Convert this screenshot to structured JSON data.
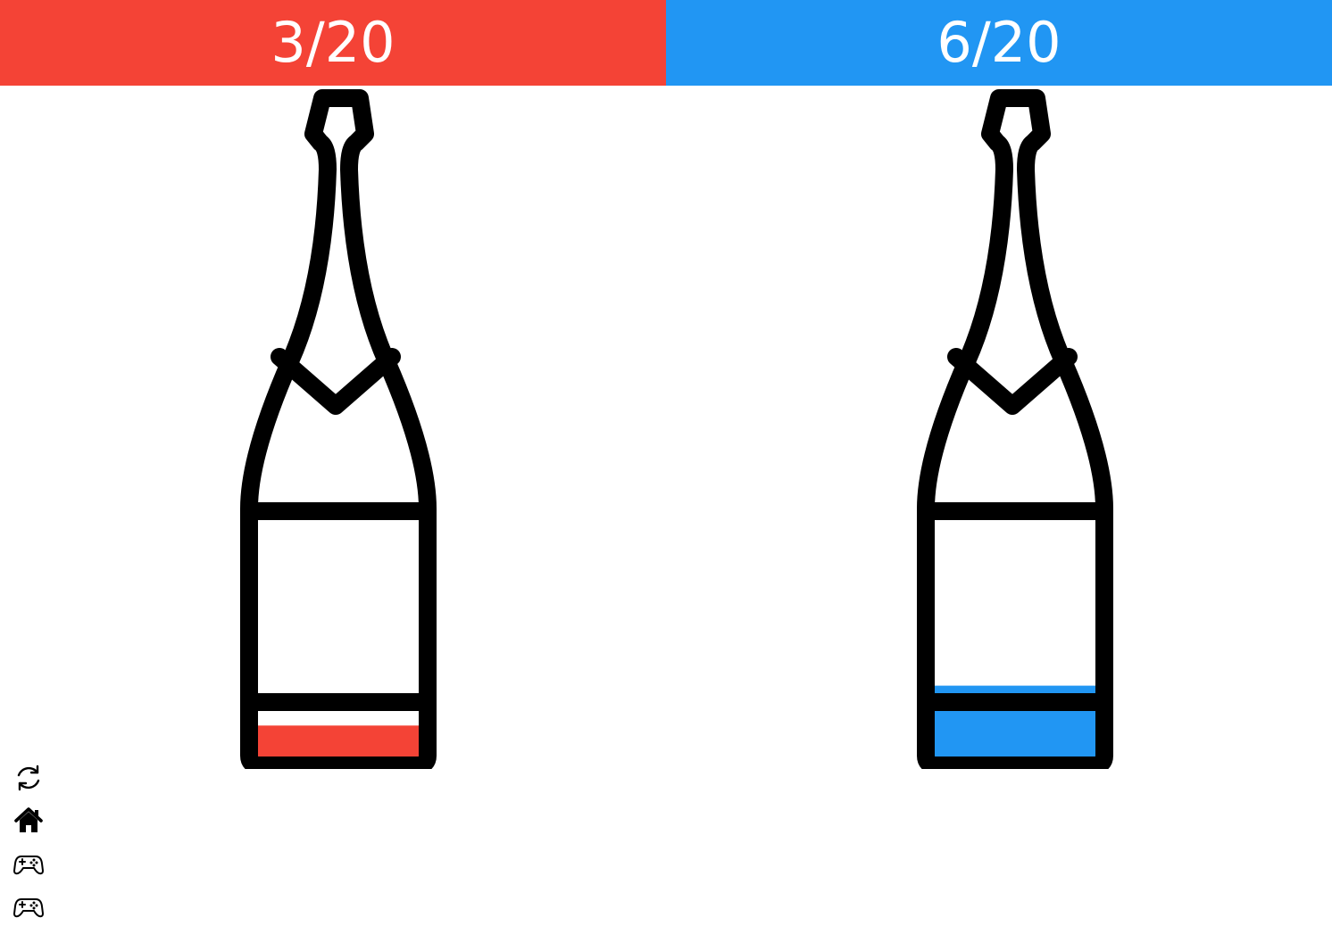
{
  "players": [
    {
      "score_text": "3/20",
      "score": 3,
      "total": 20,
      "color": "#F44336"
    },
    {
      "score_text": "6/20",
      "score": 6,
      "total": 20,
      "color": "#2196F3"
    }
  ],
  "toolbar": {
    "icons": [
      "refresh-icon",
      "home-icon",
      "gamepad-icon",
      "gamepad-icon"
    ]
  },
  "colors": {
    "outline": "#000000",
    "background": "#FFFFFF"
  }
}
